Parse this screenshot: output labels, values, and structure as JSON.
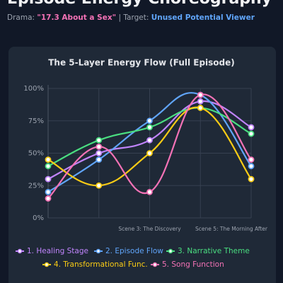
{
  "header": {
    "title": "Episode Energy Choreography",
    "drama_label": "Drama:",
    "drama": "\"17.3 About a Sex\"",
    "target_label": "| Target:",
    "target": "Unused Potential Viewer"
  },
  "chart_data": {
    "type": "line",
    "title": "The 5-Layer Energy Flow (Full Episode)",
    "categories": [
      null,
      null,
      "Scene 3: The Discovery",
      null,
      "Scene 5: The Morning After"
    ],
    "series": [
      {
        "name": "1. Healing Stage",
        "color": "#c084fc",
        "values": [
          30,
          50,
          60,
          90,
          70
        ]
      },
      {
        "name": "2. Episode Flow",
        "color": "#60a5fa",
        "values": [
          20,
          45,
          75,
          95,
          40
        ]
      },
      {
        "name": "3. Narrative Theme",
        "color": "#4ade80",
        "values": [
          40,
          60,
          70,
          85,
          65
        ]
      },
      {
        "name": "4. Transformational Func.",
        "color": "#facc15",
        "values": [
          45,
          25,
          50,
          85,
          30
        ]
      },
      {
        "name": "5. Song Function",
        "color": "#f472b6",
        "values": [
          15,
          55,
          20,
          95,
          45
        ]
      }
    ],
    "ylim": [
      0,
      100
    ],
    "yticks": [
      {
        "value": 0,
        "label": "0%"
      },
      {
        "value": 25,
        "label": "25%"
      },
      {
        "value": 50,
        "label": "50%"
      },
      {
        "value": 75,
        "label": "75%"
      },
      {
        "value": 100,
        "label": "100%"
      }
    ],
    "grid": true,
    "legend": "bottom"
  }
}
